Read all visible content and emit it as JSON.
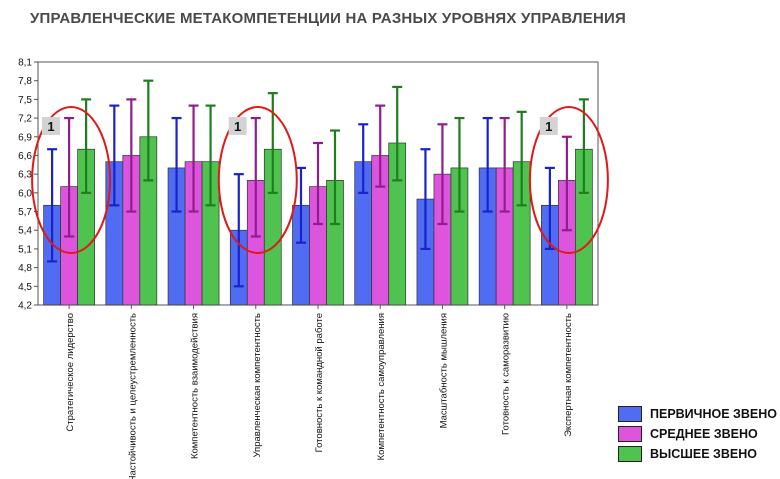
{
  "chart_data": {
    "type": "bar",
    "title": "УПРАВЛЕНЧЕСКИЕ МЕТАКОМПЕТЕНЦИИ НА РАЗНЫХ УРОВНЯХ УПРАВЛЕНИЯ",
    "xlabel": "",
    "ylabel": "",
    "ylim": [
      4.2,
      8.1
    ],
    "yticks": [
      "4,2",
      "4,5",
      "4,8",
      "5,1",
      "5,4",
      "5,7",
      "6,0",
      "6,3",
      "6,6",
      "6,9",
      "7,2",
      "7,5",
      "7,8",
      "8,1"
    ],
    "grid": false,
    "legend": "bottom-right",
    "categories": [
      "Стратегическое лидерство",
      "Настойчивость и целеустремленность",
      "Компетентность взаимодействия",
      "Управленческая компетентность",
      "Готовность к командной работе",
      "Компетентность самоуправления",
      "Масштабность мышления",
      "Готовность к саморазвитию",
      "Экспертная компетентность"
    ],
    "series": [
      {
        "name": "ПЕРВИЧНОЕ ЗВЕНО",
        "color": "#4f6cf2",
        "error_color": "#1a22c8",
        "values": [
          5.8,
          6.5,
          6.4,
          5.4,
          5.8,
          6.5,
          5.9,
          6.4,
          5.8
        ],
        "error_low": [
          4.9,
          5.8,
          5.7,
          4.5,
          5.2,
          6.0,
          5.1,
          5.7,
          5.1
        ],
        "error_high": [
          6.7,
          7.4,
          7.2,
          6.3,
          6.4,
          7.1,
          6.7,
          7.2,
          6.4
        ]
      },
      {
        "name": "СРЕДНЕЕ ЗВЕНО",
        "color": "#dd55dd",
        "error_color": "#8e1e8e",
        "values": [
          6.1,
          6.6,
          6.5,
          6.2,
          6.1,
          6.6,
          6.3,
          6.4,
          6.2
        ],
        "error_low": [
          5.3,
          5.7,
          5.7,
          5.3,
          5.5,
          6.1,
          5.5,
          5.7,
          5.4
        ],
        "error_high": [
          7.2,
          7.5,
          7.4,
          7.2,
          6.8,
          7.4,
          7.1,
          7.2,
          6.9
        ]
      },
      {
        "name": "ВЫСШЕЕ ЗВЕНО",
        "color": "#4fc24f",
        "error_color": "#1e7e1e",
        "values": [
          6.7,
          6.9,
          6.5,
          6.7,
          6.2,
          6.8,
          6.4,
          6.5,
          6.7
        ],
        "error_low": [
          6.0,
          6.2,
          5.8,
          6.0,
          5.5,
          6.2,
          5.7,
          5.8,
          6.0
        ],
        "error_high": [
          7.5,
          7.8,
          7.4,
          7.6,
          7.0,
          7.7,
          7.2,
          7.3,
          7.5
        ]
      }
    ],
    "annotations": [
      {
        "category": 0,
        "label": "1"
      },
      {
        "category": 3,
        "label": "1"
      },
      {
        "category": 8,
        "label": "1"
      }
    ]
  }
}
